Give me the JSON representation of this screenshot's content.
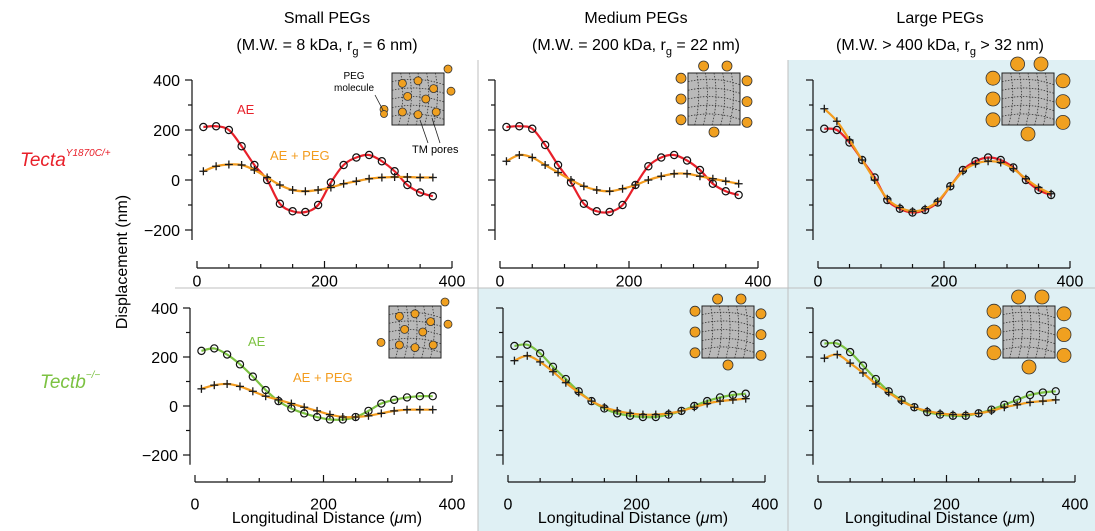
{
  "figure": {
    "columns": [
      {
        "title": "Small PEGs",
        "subtitle": "(M.W. = 8 kDa, r g = 6 nm)",
        "subtitle_parts": [
          "(M.W. = 8 kDa, r",
          "g",
          " = 6 nm)"
        ]
      },
      {
        "title": "Medium PEGs",
        "subtitle_parts": [
          "(M.W. = 200 kDa, r",
          "g",
          " = 22 nm)"
        ]
      },
      {
        "title": "Large PEGs",
        "subtitle_parts": [
          "(M.W. > 400 kDa, r",
          "g",
          " > 32 nm)"
        ]
      }
    ],
    "rows": [
      {
        "label_main": "Tecta",
        "label_sup": "Y1870C/+",
        "color": "#e8202a"
      },
      {
        "label_main": "Tectb",
        "label_sup": "−/−",
        "color": "#7cc242"
      }
    ],
    "ylabel": "Displacement (nm)",
    "xlabel_main": "Longitudinal Distance (",
    "xlabel_mu": "μ",
    "xlabel_end": "m)",
    "annotations": {
      "ae": "AE",
      "ae_peg": "AE + PEG",
      "peg_molecule": "PEG molecule",
      "peg_line1": "PEG",
      "peg_line2": "molecule",
      "tm_pores": "TM pores"
    },
    "colors": {
      "ae_tecta": "#e8202a",
      "ae_tectb": "#7cc242",
      "peg_curve": "#f39c1e",
      "panel_shade": "#dff0f4",
      "peg_dot": "#f0a020",
      "tm_fill": "#b9b9b9"
    }
  },
  "chart_data": [
    {
      "type": "line",
      "row": "Tecta",
      "column": "Small PEGs",
      "xlim": [
        0,
        400
      ],
      "ylim": [
        -240,
        400
      ],
      "yticks": [
        -200,
        0,
        200,
        400
      ],
      "xticks": [
        0,
        200,
        400
      ],
      "series": [
        {
          "name": "AE",
          "marker": "circle",
          "x": [
            10,
            30,
            50,
            70,
            90,
            110,
            130,
            150,
            170,
            190,
            210,
            230,
            250,
            270,
            290,
            310,
            330,
            350,
            370
          ],
          "y": [
            212,
            215,
            200,
            135,
            60,
            0,
            -95,
            -125,
            -128,
            -100,
            -10,
            60,
            90,
            100,
            75,
            35,
            -20,
            -50,
            -65
          ]
        },
        {
          "name": "AE + PEG",
          "marker": "plus",
          "x": [
            10,
            30,
            50,
            70,
            90,
            110,
            130,
            150,
            170,
            190,
            210,
            230,
            250,
            270,
            290,
            310,
            330,
            350,
            370
          ],
          "y": [
            35,
            55,
            62,
            60,
            40,
            10,
            -20,
            -40,
            -45,
            -40,
            -30,
            -15,
            -5,
            5,
            10,
            12,
            12,
            10,
            10
          ]
        }
      ]
    },
    {
      "type": "line",
      "row": "Tecta",
      "column": "Medium PEGs",
      "xlim": [
        0,
        400
      ],
      "ylim": [
        -240,
        400
      ],
      "xticks": [
        0,
        200,
        400
      ],
      "series": [
        {
          "name": "AE",
          "marker": "circle",
          "x": [
            10,
            30,
            50,
            70,
            90,
            110,
            130,
            150,
            170,
            190,
            210,
            230,
            250,
            270,
            290,
            310,
            330,
            350,
            370
          ],
          "y": [
            212,
            215,
            205,
            140,
            60,
            -10,
            -95,
            -125,
            -128,
            -100,
            -20,
            55,
            90,
            100,
            78,
            40,
            -15,
            -45,
            -60
          ]
        },
        {
          "name": "AE + PEG",
          "marker": "plus",
          "x": [
            10,
            30,
            50,
            70,
            90,
            110,
            130,
            150,
            170,
            190,
            210,
            230,
            250,
            270,
            290,
            310,
            330,
            350,
            370
          ],
          "y": [
            75,
            100,
            90,
            60,
            30,
            0,
            -25,
            -40,
            -45,
            -35,
            -20,
            0,
            15,
            25,
            25,
            15,
            5,
            -5,
            -15
          ]
        }
      ]
    },
    {
      "type": "line",
      "row": "Tecta",
      "column": "Large PEGs",
      "xlim": [
        0,
        400
      ],
      "ylim": [
        -240,
        400
      ],
      "xticks": [
        0,
        200,
        400
      ],
      "series": [
        {
          "name": "AE",
          "marker": "circle",
          "x": [
            10,
            30,
            50,
            70,
            90,
            110,
            130,
            150,
            170,
            190,
            210,
            230,
            250,
            270,
            290,
            310,
            330,
            350,
            370
          ],
          "y": [
            205,
            200,
            150,
            80,
            10,
            -80,
            -115,
            -130,
            -120,
            -90,
            -25,
            40,
            75,
            90,
            80,
            50,
            0,
            -40,
            -60
          ]
        },
        {
          "name": "AE + PEG",
          "marker": "plus",
          "x": [
            10,
            30,
            50,
            70,
            90,
            110,
            130,
            150,
            170,
            190,
            210,
            230,
            250,
            270,
            290,
            310,
            330,
            350,
            370
          ],
          "y": [
            285,
            235,
            160,
            80,
            0,
            -75,
            -110,
            -125,
            -115,
            -85,
            -25,
            35,
            65,
            75,
            70,
            45,
            5,
            -30,
            -55
          ]
        }
      ]
    },
    {
      "type": "line",
      "row": "Tectb",
      "column": "Small PEGs",
      "xlim": [
        0,
        400
      ],
      "ylim": [
        -240,
        400
      ],
      "yticks": [
        -200,
        0,
        200,
        400
      ],
      "xticks": [
        0,
        200,
        400
      ],
      "series": [
        {
          "name": "AE",
          "marker": "circle",
          "x": [
            10,
            30,
            50,
            70,
            90,
            110,
            130,
            150,
            170,
            190,
            210,
            230,
            250,
            270,
            290,
            310,
            330,
            350,
            370
          ],
          "y": [
            225,
            235,
            210,
            170,
            120,
            65,
            20,
            -10,
            -30,
            -45,
            -55,
            -55,
            -45,
            -20,
            10,
            25,
            35,
            40,
            40
          ]
        },
        {
          "name": "AE + PEG",
          "marker": "plus",
          "x": [
            10,
            30,
            50,
            70,
            90,
            110,
            130,
            150,
            170,
            190,
            210,
            230,
            250,
            270,
            290,
            310,
            330,
            350,
            370
          ],
          "y": [
            70,
            85,
            90,
            80,
            60,
            40,
            25,
            10,
            -5,
            -20,
            -35,
            -45,
            -45,
            -40,
            -30,
            -20,
            -15,
            -15,
            -15
          ]
        }
      ]
    },
    {
      "type": "line",
      "row": "Tectb",
      "column": "Medium PEGs",
      "xlim": [
        0,
        400
      ],
      "ylim": [
        -240,
        400
      ],
      "xticks": [
        0,
        200,
        400
      ],
      "series": [
        {
          "name": "AE",
          "marker": "circle",
          "x": [
            10,
            30,
            50,
            70,
            90,
            110,
            130,
            150,
            170,
            190,
            210,
            230,
            250,
            270,
            290,
            310,
            330,
            350,
            370
          ],
          "y": [
            245,
            250,
            215,
            160,
            110,
            60,
            20,
            -10,
            -30,
            -40,
            -45,
            -45,
            -35,
            -20,
            0,
            20,
            35,
            45,
            50
          ]
        },
        {
          "name": "AE + PEG",
          "marker": "plus",
          "x": [
            10,
            30,
            50,
            70,
            90,
            110,
            130,
            150,
            170,
            190,
            210,
            230,
            250,
            270,
            290,
            310,
            330,
            350,
            370
          ],
          "y": [
            185,
            205,
            180,
            140,
            95,
            55,
            20,
            -5,
            -20,
            -30,
            -35,
            -35,
            -30,
            -20,
            -5,
            10,
            20,
            25,
            30
          ]
        }
      ]
    },
    {
      "type": "line",
      "row": "Tectb",
      "column": "Large PEGs",
      "xlim": [
        0,
        400
      ],
      "ylim": [
        -240,
        400
      ],
      "xticks": [
        0,
        200,
        400
      ],
      "series": [
        {
          "name": "AE",
          "marker": "circle",
          "x": [
            10,
            30,
            50,
            70,
            90,
            110,
            130,
            150,
            170,
            190,
            210,
            230,
            250,
            270,
            290,
            310,
            330,
            350,
            370
          ],
          "y": [
            255,
            255,
            220,
            165,
            110,
            60,
            25,
            -5,
            -25,
            -35,
            -40,
            -40,
            -30,
            -15,
            5,
            25,
            45,
            55,
            60
          ]
        },
        {
          "name": "AE + PEG",
          "marker": "plus",
          "x": [
            10,
            30,
            50,
            70,
            90,
            110,
            130,
            150,
            170,
            190,
            210,
            230,
            250,
            270,
            290,
            310,
            330,
            350,
            370
          ],
          "y": [
            195,
            210,
            175,
            135,
            90,
            55,
            20,
            -5,
            -20,
            -30,
            -35,
            -35,
            -30,
            -20,
            -5,
            5,
            15,
            20,
            25
          ]
        }
      ]
    }
  ]
}
